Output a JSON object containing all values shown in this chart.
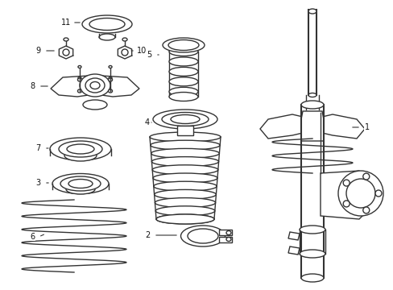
{
  "background_color": "#ffffff",
  "line_color": "#333333",
  "line_width": 1.0,
  "figsize": [
    4.89,
    3.6
  ],
  "dpi": 100
}
